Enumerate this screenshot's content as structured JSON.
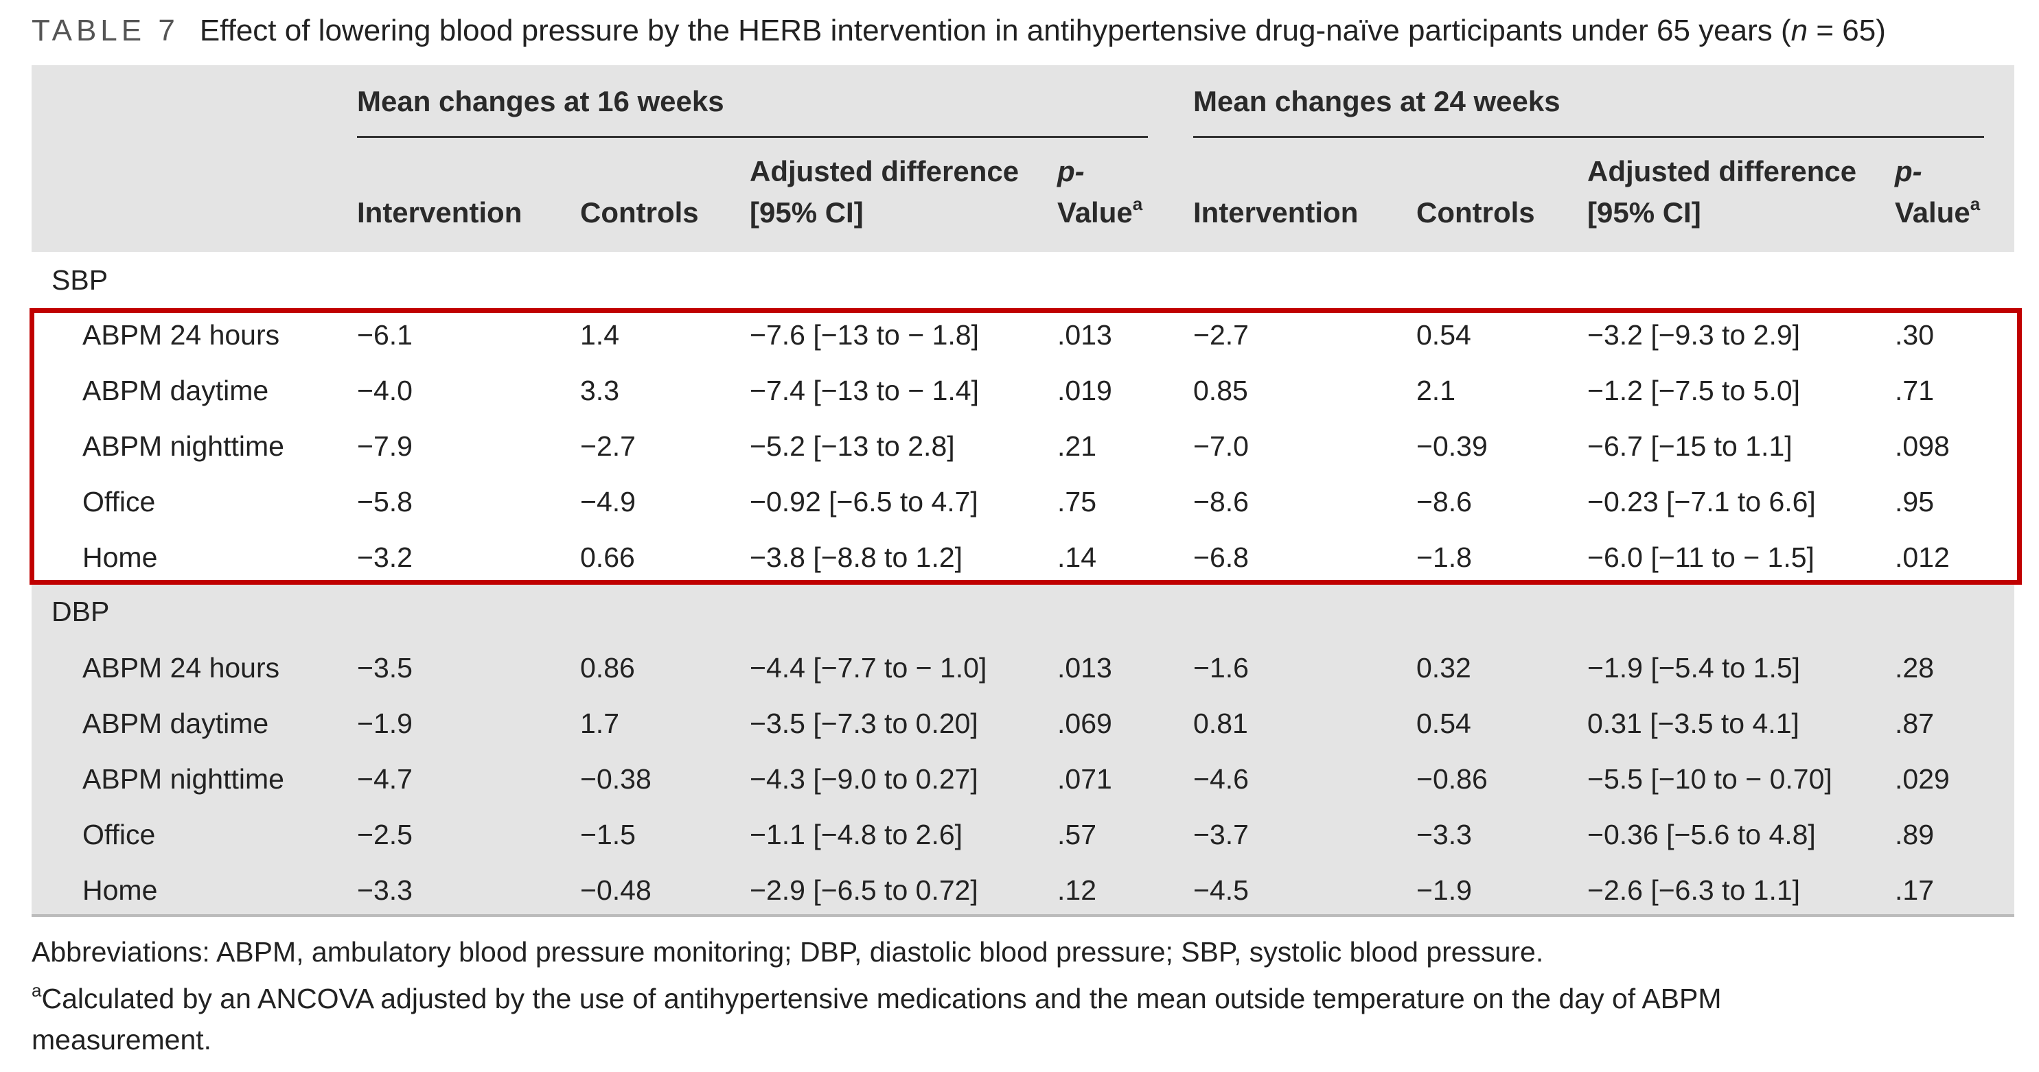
{
  "caption": {
    "label": "TABLE 7",
    "title_prefix": "Effect of lowering blood pressure by the HERB intervention in antihypertensive drug-naïve participants under 65 years (",
    "title_n_symbol": "n",
    "title_suffix": " = 65)"
  },
  "table": {
    "groups": [
      "Mean changes at 16 weeks",
      "Mean changes at 24 weeks"
    ],
    "columns": [
      {
        "line1": "",
        "line2": "Intervention"
      },
      {
        "line1": "",
        "line2": "Controls"
      },
      {
        "line1": "Adjusted difference",
        "line2": "[95% CI]"
      },
      {
        "line1": "p-",
        "line2": "Value",
        "sup": "a"
      },
      {
        "line1": "",
        "line2": "Intervention"
      },
      {
        "line1": "",
        "line2": "Controls"
      },
      {
        "line1": "Adjusted difference",
        "line2": "[95% CI]"
      },
      {
        "line1": "p-",
        "line2": "Value",
        "sup": "a"
      }
    ],
    "sections": [
      {
        "name": "SBP",
        "rows": [
          {
            "label": "ABPM 24 hours",
            "values": [
              "−6.1",
              "1.4",
              "−7.6 [−13 to − 1.8]",
              ".013",
              "−2.7",
              "0.54",
              "−3.2 [−9.3 to 2.9]",
              ".30"
            ]
          },
          {
            "label": "ABPM daytime",
            "values": [
              "−4.0",
              "3.3",
              "−7.4 [−13 to − 1.4]",
              ".019",
              "0.85",
              "2.1",
              "−1.2 [−7.5 to 5.0]",
              ".71"
            ]
          },
          {
            "label": "ABPM nighttime",
            "values": [
              "−7.9",
              "−2.7",
              "−5.2 [−13 to 2.8]",
              ".21",
              "−7.0",
              "−0.39",
              "−6.7 [−15 to 1.1]",
              ".098"
            ]
          },
          {
            "label": "Office",
            "values": [
              "−5.8",
              "−4.9",
              "−0.92 [−6.5 to 4.7]",
              ".75",
              "−8.6",
              "−8.6",
              "−0.23 [−7.1 to 6.6]",
              ".95"
            ]
          },
          {
            "label": "Home",
            "values": [
              "−3.2",
              "0.66",
              "−3.8 [−8.8 to 1.2]",
              ".14",
              "−6.8",
              "−1.8",
              "−6.0 [−11 to − 1.5]",
              ".012"
            ]
          }
        ]
      },
      {
        "name": "DBP",
        "rows": [
          {
            "label": "ABPM 24 hours",
            "values": [
              "−3.5",
              "0.86",
              "−4.4 [−7.7 to − 1.0]",
              ".013",
              "−1.6",
              "0.32",
              "−1.9 [−5.4 to 1.5]",
              ".28"
            ]
          },
          {
            "label": "ABPM daytime",
            "values": [
              "−1.9",
              "1.7",
              "−3.5 [−7.3 to 0.20]",
              ".069",
              "0.81",
              "0.54",
              "0.31 [−3.5 to 4.1]",
              ".87"
            ]
          },
          {
            "label": "ABPM nighttime",
            "values": [
              "−4.7",
              "−0.38",
              "−4.3 [−9.0 to 0.27]",
              ".071",
              "−4.6",
              "−0.86",
              "−5.5 [−10 to − 0.70]",
              ".029"
            ]
          },
          {
            "label": "Office",
            "values": [
              "−2.5",
              "−1.5",
              "−1.1 [−4.8 to 2.6]",
              ".57",
              "−3.7",
              "−3.3",
              "−0.36 [−5.6 to 4.8]",
              ".89"
            ]
          },
          {
            "label": "Home",
            "values": [
              "−3.3",
              "−0.48",
              "−2.9 [−6.5 to 0.72]",
              ".12",
              "−4.5",
              "−1.9",
              "−2.6 [−6.3 to 1.1]",
              ".17"
            ]
          }
        ]
      }
    ]
  },
  "footnotes": {
    "abbreviations": "Abbreviations: ABPM, ambulatory blood pressure monitoring; DBP, diastolic blood pressure; SBP, systolic blood pressure.",
    "marker": "a",
    "a_line1": "Calculated by an ANCOVA adjusted by the use of antihypertensive medications and the mean outside temperature on the day of ABPM",
    "a_line2": "measurement."
  }
}
